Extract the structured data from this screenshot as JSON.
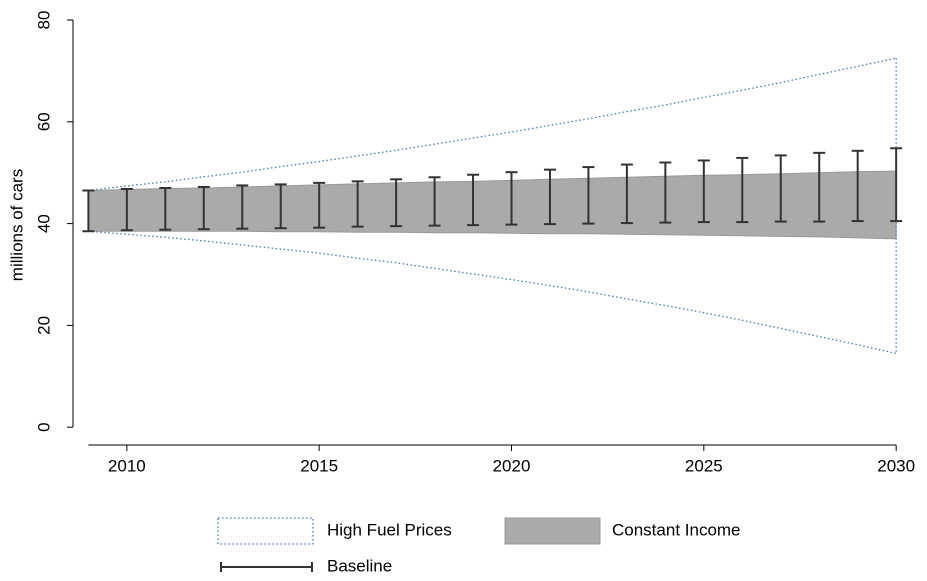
{
  "chart_data": {
    "type": "range",
    "y_label": "millions of cars",
    "x": [
      2009,
      2010,
      2011,
      2012,
      2013,
      2014,
      2015,
      2016,
      2017,
      2018,
      2019,
      2020,
      2021,
      2022,
      2023,
      2024,
      2025,
      2026,
      2027,
      2028,
      2029,
      2030
    ],
    "xlim": [
      2008.6,
      2030.1
    ],
    "xticks": [
      2010,
      2015,
      2020,
      2025,
      2030
    ],
    "ylim": [
      -3.5,
      80
    ],
    "yticks": [
      0,
      20,
      40,
      60,
      80
    ],
    "series": [
      {
        "name": "High Fuel Prices",
        "color": "#4a7ab8",
        "style": "dotted",
        "upper": [
          46.5,
          47.4,
          48.2,
          49.2,
          50.1,
          51.2,
          52.2,
          53.3,
          54.4,
          55.6,
          56.8,
          58.0,
          59.3,
          60.6,
          62.0,
          63.3,
          64.8,
          66.2,
          67.7,
          69.3,
          70.9,
          72.5
        ],
        "lower": [
          38.5,
          37.9,
          37.3,
          36.6,
          35.8,
          35.0,
          34.2,
          33.2,
          32.3,
          31.2,
          30.1,
          29.0,
          27.8,
          26.6,
          25.2,
          23.9,
          22.5,
          21.0,
          19.4,
          17.8,
          16.2,
          14.5
        ]
      },
      {
        "name": "Constant Income",
        "color": "#aaaaaa",
        "style": "area",
        "upper": [
          46.5,
          46.7,
          46.9,
          47.0,
          47.2,
          47.4,
          47.6,
          47.8,
          48.0,
          48.2,
          48.3,
          48.5,
          48.7,
          48.9,
          49.1,
          49.3,
          49.5,
          49.6,
          49.8,
          50.0,
          50.2,
          50.3
        ],
        "lower": [
          38.5,
          38.5,
          38.5,
          38.5,
          38.5,
          38.4,
          38.4,
          38.3,
          38.3,
          38.2,
          38.2,
          38.1,
          38.0,
          38.0,
          37.9,
          37.8,
          37.7,
          37.6,
          37.5,
          37.4,
          37.2,
          37.0
        ]
      },
      {
        "name": "Baseline",
        "color": "#333333",
        "style": "errorbar",
        "upper": [
          46.5,
          46.8,
          47.0,
          47.2,
          47.5,
          47.7,
          48.0,
          48.3,
          48.7,
          49.1,
          49.6,
          50.1,
          50.6,
          51.1,
          51.6,
          52.0,
          52.4,
          52.9,
          53.4,
          53.9,
          54.3,
          54.8
        ],
        "lower": [
          38.5,
          38.7,
          38.8,
          38.9,
          39.0,
          39.1,
          39.2,
          39.4,
          39.5,
          39.6,
          39.7,
          39.8,
          39.9,
          40.0,
          40.1,
          40.2,
          40.3,
          40.3,
          40.4,
          40.4,
          40.5,
          40.5
        ]
      }
    ]
  }
}
